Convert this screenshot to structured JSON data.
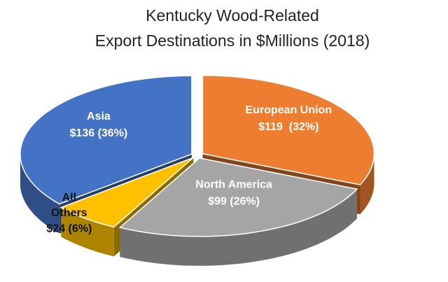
{
  "chart_data": {
    "type": "pie3d",
    "title": [
      "Kentucky Wood-Related",
      "Export Destinations in $Millions (2018)"
    ],
    "categories": [
      "European Union",
      "North America",
      "All Others",
      "Asia"
    ],
    "values": [
      119,
      99,
      24,
      136
    ],
    "value_labels": [
      "$119  (32%)",
      "$99 (26%)",
      "$24 (6%)",
      "$136 (36%)"
    ],
    "colors": [
      "#ed7d31",
      "#a5a5a5",
      "#ffc000",
      "#4472c4"
    ]
  }
}
